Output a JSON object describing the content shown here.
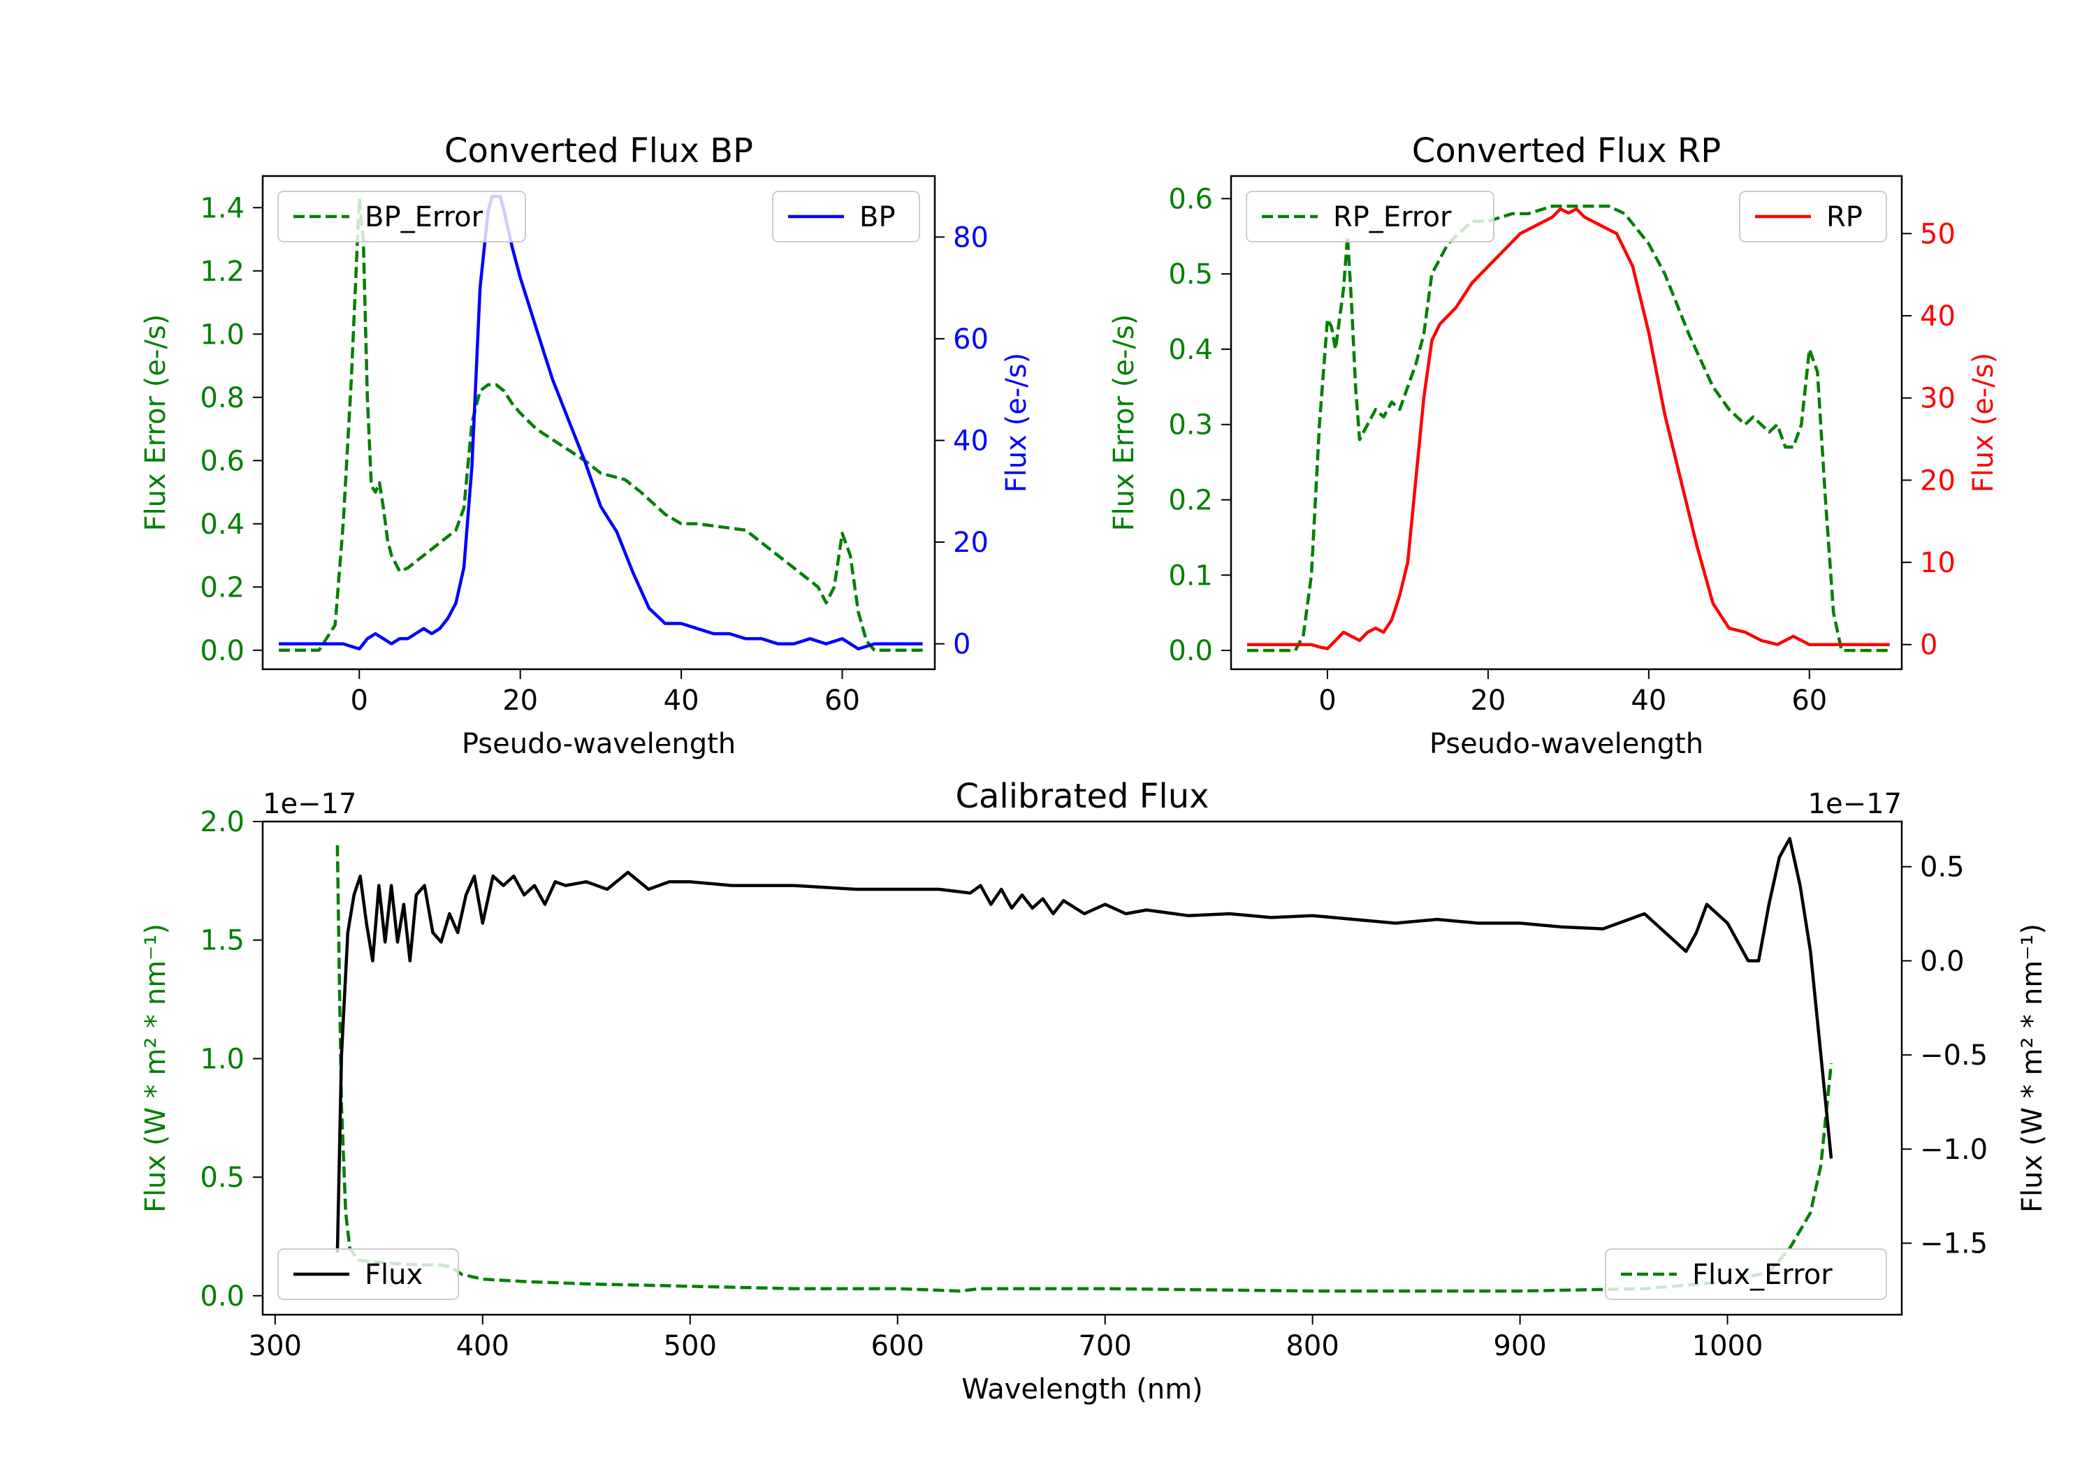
{
  "colors": {
    "green": "#008000",
    "blue": "#0000ff",
    "red": "#ff0000",
    "black": "#000000"
  },
  "chart_data": [
    {
      "id": "bp",
      "type": "line",
      "title": "Converted Flux BP",
      "xlabel": "Pseudo-wavelength",
      "ylabel_left": "Flux Error (e-/s)",
      "ylabel_right": "Flux (e-/s)",
      "xlim": [
        -12,
        71.5
      ],
      "ylim_left": [
        -0.06,
        1.5
      ],
      "ylim_right": [
        -5,
        92
      ],
      "xticks": [
        0,
        20,
        40,
        60
      ],
      "yticks_left": [
        0.0,
        0.2,
        0.4,
        0.6,
        0.8,
        1.0,
        1.2,
        1.4
      ],
      "yticks_left_labels": [
        "0.0",
        "0.2",
        "0.4",
        "0.6",
        "0.8",
        "1.0",
        "1.2",
        "1.4"
      ],
      "yticks_right": [
        0,
        20,
        40,
        60,
        80
      ],
      "yticks_right_labels": [
        "0",
        "20",
        "40",
        "60",
        "80"
      ],
      "legend_left": {
        "label": "BP_Error",
        "position": "upper-left"
      },
      "legend_right": {
        "label": "BP",
        "position": "upper-right"
      },
      "series": [
        {
          "name": "BP_Error",
          "axis": "left",
          "style": "dashed",
          "color": "#008000",
          "x": [
            -10,
            -5,
            -3,
            -2,
            -1,
            0,
            0.5,
            1,
            1.5,
            2,
            2.5,
            3,
            3.5,
            4,
            5,
            6,
            7,
            8,
            10,
            12,
            13,
            14,
            15,
            16,
            17,
            18,
            19,
            20,
            22,
            25,
            28,
            30,
            33,
            35,
            38,
            40,
            42,
            45,
            48,
            50,
            53,
            55,
            57,
            58,
            59,
            60,
            61,
            62,
            63,
            64,
            65,
            70
          ],
          "y": [
            0,
            0,
            0.08,
            0.4,
            0.85,
            1.43,
            1.3,
            0.8,
            0.52,
            0.5,
            0.53,
            0.45,
            0.35,
            0.3,
            0.25,
            0.26,
            0.28,
            0.3,
            0.34,
            0.38,
            0.45,
            0.72,
            0.82,
            0.84,
            0.84,
            0.82,
            0.78,
            0.75,
            0.7,
            0.65,
            0.6,
            0.56,
            0.54,
            0.5,
            0.43,
            0.4,
            0.4,
            0.39,
            0.38,
            0.34,
            0.28,
            0.24,
            0.2,
            0.15,
            0.2,
            0.37,
            0.3,
            0.12,
            0.03,
            0,
            0,
            0
          ]
        },
        {
          "name": "BP",
          "axis": "right",
          "style": "solid",
          "color": "#0000ff",
          "x": [
            -10,
            -5,
            -2,
            0,
            1,
            2,
            3,
            4,
            5,
            6,
            7,
            8,
            9,
            10,
            11,
            12,
            13,
            14,
            15,
            16,
            16.5,
            17.5,
            18,
            19,
            20,
            22,
            24,
            26,
            28,
            30,
            32,
            34,
            36,
            38,
            40,
            42,
            44,
            46,
            48,
            50,
            52,
            54,
            56,
            58,
            60,
            62,
            64,
            70
          ],
          "y": [
            0,
            0,
            0,
            -1,
            1,
            2,
            1,
            0,
            1,
            1,
            2,
            3,
            2,
            3,
            5,
            8,
            15,
            35,
            70,
            85,
            88,
            88,
            85,
            78,
            72,
            62,
            52,
            44,
            36,
            27,
            22,
            14,
            7,
            4,
            4,
            3,
            2,
            2,
            1,
            1,
            0,
            0,
            1,
            0,
            1,
            -1,
            0,
            0
          ]
        }
      ]
    },
    {
      "id": "rp",
      "type": "line",
      "title": "Converted Flux RP",
      "xlabel": "Pseudo-wavelength",
      "ylabel_left": "Flux Error (e-/s)",
      "ylabel_right": "Flux (e-/s)",
      "xlim": [
        -12,
        71.5
      ],
      "ylim_left": [
        -0.025,
        0.63
      ],
      "ylim_right": [
        -3,
        57
      ],
      "xticks": [
        0,
        20,
        40,
        60
      ],
      "yticks_left": [
        0.0,
        0.1,
        0.2,
        0.3,
        0.4,
        0.5,
        0.6
      ],
      "yticks_left_labels": [
        "0.0",
        "0.1",
        "0.2",
        "0.3",
        "0.4",
        "0.5",
        "0.6"
      ],
      "yticks_right": [
        0,
        10,
        20,
        30,
        40,
        50
      ],
      "yticks_right_labels": [
        "0",
        "10",
        "20",
        "30",
        "40",
        "50"
      ],
      "legend_left": {
        "label": "RP_Error",
        "position": "upper-left"
      },
      "legend_right": {
        "label": "RP",
        "position": "upper-right"
      },
      "series": [
        {
          "name": "RP_Error",
          "axis": "left",
          "style": "dashed",
          "color": "#008000",
          "x": [
            -10,
            -5,
            -4,
            -3,
            -2,
            -1,
            0,
            0.5,
            1,
            1.5,
            2,
            2.5,
            3,
            3.5,
            4,
            5,
            6,
            7,
            8,
            9,
            10,
            11,
            12,
            13,
            15,
            18,
            20,
            23,
            25,
            28,
            30,
            33,
            35,
            37,
            40,
            42,
            45,
            48,
            50,
            52,
            53,
            55,
            56,
            57,
            58,
            59,
            60,
            61,
            62,
            63,
            64,
            70
          ],
          "y": [
            0,
            0,
            0,
            0.02,
            0.1,
            0.3,
            0.44,
            0.43,
            0.4,
            0.44,
            0.48,
            0.55,
            0.46,
            0.35,
            0.28,
            0.3,
            0.32,
            0.31,
            0.33,
            0.32,
            0.35,
            0.38,
            0.42,
            0.5,
            0.54,
            0.57,
            0.57,
            0.58,
            0.58,
            0.59,
            0.59,
            0.59,
            0.59,
            0.58,
            0.54,
            0.5,
            0.42,
            0.35,
            0.32,
            0.3,
            0.31,
            0.29,
            0.3,
            0.27,
            0.27,
            0.3,
            0.4,
            0.37,
            0.2,
            0.05,
            0,
            0
          ]
        },
        {
          "name": "RP",
          "axis": "right",
          "style": "solid",
          "color": "#ff0000",
          "x": [
            -10,
            -5,
            -2,
            -1,
            0,
            1,
            2,
            3,
            4,
            5,
            6,
            7,
            8,
            9,
            10,
            11,
            12,
            13,
            14,
            16,
            18,
            20,
            22,
            24,
            26,
            28,
            29,
            30,
            31,
            32,
            34,
            36,
            38,
            40,
            42,
            44,
            46,
            48,
            50,
            52,
            54,
            56,
            58,
            60,
            62,
            70
          ],
          "y": [
            0,
            0,
            0,
            -0.3,
            -0.5,
            0.5,
            1.5,
            1,
            0.5,
            1.5,
            2,
            1.5,
            3,
            6,
            10,
            20,
            30,
            37,
            39,
            41,
            44,
            46,
            48,
            50,
            51,
            52,
            53,
            52.5,
            53,
            52,
            51,
            50,
            46,
            38,
            28,
            20,
            12,
            5,
            2,
            1.5,
            0.5,
            0,
            1,
            0,
            0,
            0
          ]
        }
      ]
    },
    {
      "id": "cal",
      "type": "line",
      "title": "Calibrated Flux",
      "xlabel": "Wavelength (nm)",
      "ylabel_left": "Flux (W * m² * nm⁻¹)",
      "ylabel_right": "Flux (W * m² * nm⁻¹)",
      "scale_note_left": "1e−17",
      "scale_note_right": "1e−17",
      "xlim": [
        294,
        1084
      ],
      "ylim_left": [
        -0.08,
        2.0
      ],
      "ylim_right": [
        -1.88,
        0.74
      ],
      "xticks": [
        300,
        400,
        500,
        600,
        700,
        800,
        900,
        1000
      ],
      "yticks_left": [
        0.0,
        0.5,
        1.0,
        1.5,
        2.0
      ],
      "yticks_left_labels": [
        "0.0",
        "0.5",
        "1.0",
        "1.5",
        "2.0"
      ],
      "yticks_right": [
        -1.5,
        -1.0,
        -0.5,
        0.0,
        0.5
      ],
      "yticks_right_labels": [
        "−1.5",
        "−1.0",
        "−0.5",
        "0.0",
        "0.5"
      ],
      "legend_left": {
        "label": "Flux",
        "position": "lower-left"
      },
      "legend_right": {
        "label": "Flux_Error",
        "position": "lower-right"
      },
      "series": [
        {
          "name": "Flux_Error",
          "axis": "left",
          "style": "dashed",
          "color": "#008000",
          "x": [
            330,
            331,
            332,
            334,
            336,
            340,
            350,
            370,
            380,
            385,
            390,
            400,
            420,
            450,
            500,
            550,
            600,
            630,
            640,
            700,
            800,
            900,
            960,
            1000,
            1020,
            1030,
            1040,
            1045,
            1050
          ],
          "y": [
            1.9,
            1.3,
            0.8,
            0.35,
            0.2,
            0.15,
            0.14,
            0.13,
            0.13,
            0.12,
            0.09,
            0.07,
            0.06,
            0.05,
            0.04,
            0.03,
            0.03,
            0.02,
            0.03,
            0.03,
            0.02,
            0.02,
            0.03,
            0.06,
            0.1,
            0.2,
            0.35,
            0.55,
            0.98
          ]
        },
        {
          "name": "Flux",
          "axis": "right",
          "style": "solid",
          "color": "#000000",
          "x": [
            330,
            332,
            335,
            338,
            341,
            344,
            347,
            350,
            353,
            356,
            359,
            362,
            365,
            368,
            372,
            376,
            380,
            384,
            388,
            392,
            396,
            400,
            405,
            410,
            415,
            420,
            425,
            430,
            435,
            440,
            450,
            460,
            470,
            480,
            490,
            500,
            520,
            550,
            580,
            600,
            620,
            635,
            640,
            645,
            650,
            655,
            660,
            665,
            670,
            675,
            680,
            690,
            700,
            710,
            720,
            740,
            760,
            780,
            800,
            820,
            840,
            860,
            880,
            900,
            920,
            940,
            960,
            970,
            980,
            985,
            990,
            1000,
            1010,
            1015,
            1020,
            1025,
            1030,
            1035,
            1040,
            1045,
            1050
          ],
          "y": [
            -1.55,
            -0.5,
            0.15,
            0.35,
            0.45,
            0.2,
            0.0,
            0.4,
            0.1,
            0.4,
            0.1,
            0.3,
            0.0,
            0.35,
            0.4,
            0.15,
            0.1,
            0.25,
            0.15,
            0.35,
            0.45,
            0.2,
            0.45,
            0.4,
            0.45,
            0.35,
            0.4,
            0.3,
            0.42,
            0.4,
            0.42,
            0.38,
            0.47,
            0.38,
            0.42,
            0.42,
            0.4,
            0.4,
            0.38,
            0.38,
            0.38,
            0.36,
            0.4,
            0.3,
            0.38,
            0.28,
            0.35,
            0.28,
            0.33,
            0.25,
            0.32,
            0.25,
            0.3,
            0.25,
            0.27,
            0.24,
            0.25,
            0.23,
            0.24,
            0.22,
            0.2,
            0.22,
            0.2,
            0.2,
            0.18,
            0.17,
            0.25,
            0.15,
            0.05,
            0.15,
            0.3,
            0.2,
            0.0,
            0.0,
            0.3,
            0.55,
            0.65,
            0.4,
            0.05,
            -0.5,
            -1.05
          ]
        }
      ]
    }
  ]
}
